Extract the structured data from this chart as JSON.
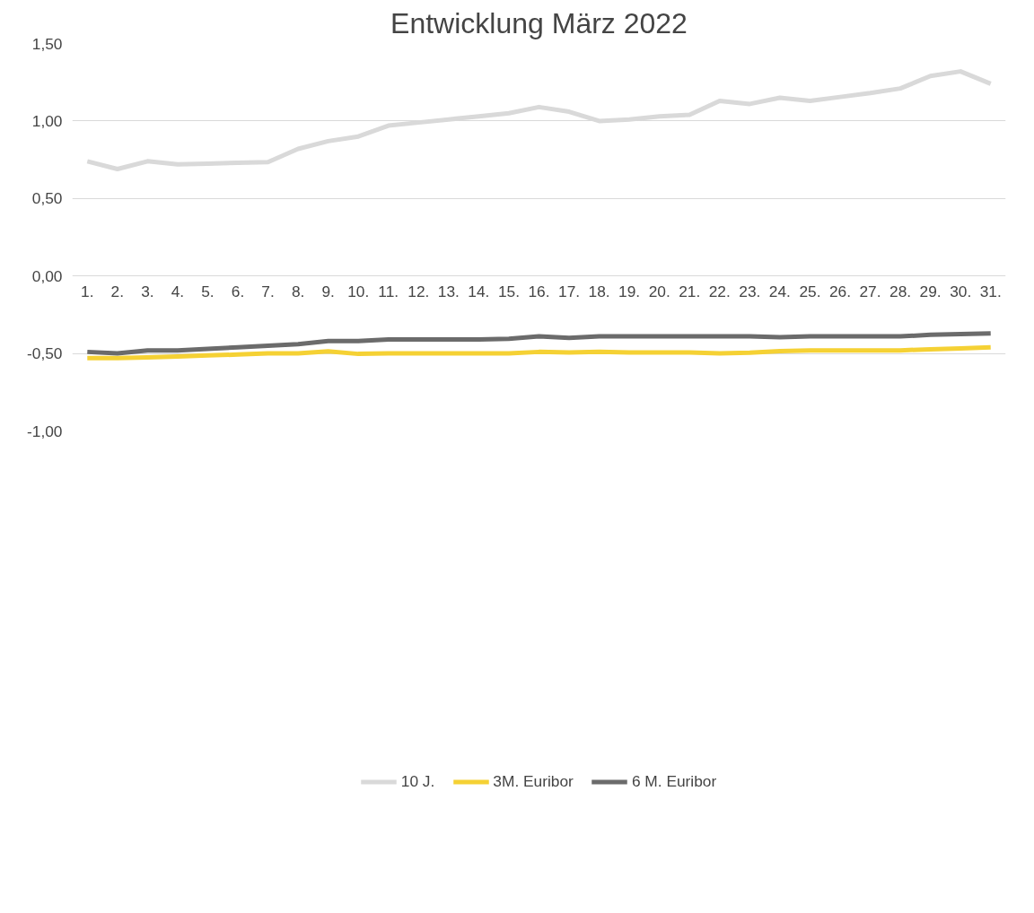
{
  "chart_data": {
    "type": "line",
    "title": "Entwicklung März 2022",
    "categories": [
      "1.",
      "2.",
      "3.",
      "4.",
      "5.",
      "6.",
      "7.",
      "8.",
      "9.",
      "10.",
      "11.",
      "12.",
      "13.",
      "14.",
      "15.",
      "16.",
      "17.",
      "18.",
      "19.",
      "20.",
      "21.",
      "22.",
      "23.",
      "24.",
      "25.",
      "26.",
      "27.",
      "28.",
      "29.",
      "30.",
      "31."
    ],
    "series": [
      {
        "name": "10 J.",
        "color": "#d9d9d9",
        "values": [
          0.74,
          0.69,
          0.74,
          0.72,
          0.725,
          0.73,
          0.735,
          0.82,
          0.87,
          0.9,
          0.97,
          0.99,
          1.01,
          1.03,
          1.05,
          1.09,
          1.06,
          1.0,
          1.01,
          1.03,
          1.04,
          1.13,
          1.11,
          1.15,
          1.13,
          1.155,
          1.18,
          1.21,
          1.29,
          1.32,
          1.24
        ]
      },
      {
        "name": "3M. Euribor",
        "color": "#f5d134",
        "values": [
          -0.53,
          -0.53,
          -0.525,
          -0.52,
          -0.513,
          -0.507,
          -0.5,
          -0.5,
          -0.487,
          -0.503,
          -0.5,
          -0.5,
          -0.5,
          -0.5,
          -0.5,
          -0.49,
          -0.493,
          -0.49,
          -0.493,
          -0.493,
          -0.493,
          -0.5,
          -0.495,
          -0.485,
          -0.48,
          -0.48,
          -0.48,
          -0.48,
          -0.473,
          -0.467,
          -0.46
        ]
      },
      {
        "name": "6 M. Euribor",
        "color": "#6b6b6b",
        "values": [
          -0.49,
          -0.5,
          -0.48,
          -0.48,
          -0.47,
          -0.46,
          -0.45,
          -0.44,
          -0.42,
          -0.42,
          -0.41,
          -0.41,
          -0.41,
          -0.41,
          -0.405,
          -0.39,
          -0.4,
          -0.39,
          -0.39,
          -0.39,
          -0.39,
          -0.39,
          -0.39,
          -0.395,
          -0.39,
          -0.39,
          -0.39,
          -0.39,
          -0.38,
          -0.375,
          -0.37
        ]
      }
    ],
    "ylim": [
      -1.0,
      1.5
    ],
    "yticks": [
      {
        "value": -1.0,
        "label": "-1,00"
      },
      {
        "value": -0.5,
        "label": "-0,50"
      },
      {
        "value": 0.0,
        "label": "0,00"
      },
      {
        "value": 0.5,
        "label": "0,50"
      },
      {
        "value": 1.0,
        "label": "1,00"
      },
      {
        "value": 1.5,
        "label": "1,50"
      }
    ],
    "grid": "y",
    "legend": "bottom",
    "marker": "none",
    "line_style": "solid"
  }
}
